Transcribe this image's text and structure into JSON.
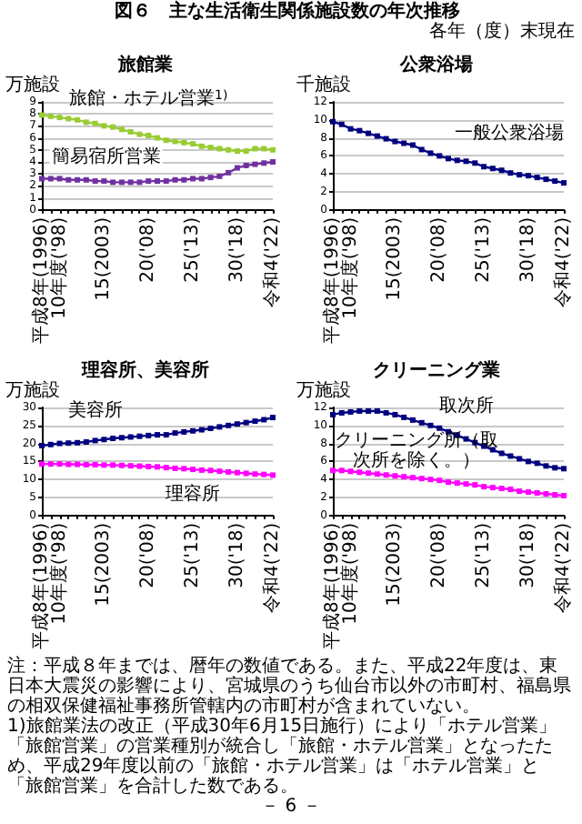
{
  "chart_data": [
    {
      "type": "line",
      "title": "旅館業",
      "ylabel": "万施設",
      "annotations": [
        "図６　主な生活衛生関係施設数の年次推移",
        "各年（度）末現在"
      ],
      "categories": [
        "平成8年(1996)",
        null,
        "10年度('98)",
        null,
        null,
        null,
        null,
        "15(2003)",
        null,
        null,
        null,
        null,
        "20('08)",
        null,
        null,
        null,
        null,
        "25('13)",
        null,
        null,
        null,
        null,
        "30('18)",
        null,
        null,
        null,
        "令和4('22)"
      ],
      "series": [
        {
          "name": "旅館・ホテル営業$^{1)}$",
          "color": "#99cc33",
          "values": [
            7.9,
            7.8,
            7.7,
            7.6,
            7.5,
            7.3,
            7.2,
            7.0,
            6.9,
            6.7,
            6.5,
            6.3,
            6.2,
            6.0,
            5.8,
            5.7,
            5.6,
            5.5,
            5.3,
            5.2,
            5.1,
            5.0,
            4.9,
            4.9,
            5.1,
            5.1,
            5.0
          ]
        },
        {
          "name": "簡易宿所営業",
          "color": "#7030a0",
          "values": [
            2.6,
            2.6,
            2.6,
            2.5,
            2.5,
            2.5,
            2.4,
            2.4,
            2.3,
            2.3,
            2.3,
            2.3,
            2.4,
            2.4,
            2.4,
            2.5,
            2.5,
            2.6,
            2.6,
            2.7,
            2.8,
            3.1,
            3.5,
            3.7,
            3.8,
            3.9,
            4.0
          ]
        }
      ],
      "ylim": [
        0,
        9
      ],
      "yticks": [
        0,
        1,
        2,
        3,
        4,
        5,
        6,
        7,
        8,
        9
      ],
      "grid": "y",
      "legend": false,
      "marker": "square"
    },
    {
      "type": "line",
      "title": "公衆浴場",
      "ylabel": "千施設",
      "categories": [
        "平成8年(1996)",
        null,
        "10年度('98)",
        null,
        null,
        null,
        null,
        "15(2003)",
        null,
        null,
        null,
        null,
        "20('08)",
        null,
        null,
        null,
        null,
        "25('13)",
        null,
        null,
        null,
        null,
        "30('18)",
        null,
        null,
        null,
        "令和4('22)"
      ],
      "series": [
        {
          "name": "一般公衆浴場",
          "color": "#000080",
          "values": [
            9.8,
            9.5,
            9.0,
            8.8,
            8.5,
            8.2,
            7.9,
            7.6,
            7.4,
            7.2,
            6.7,
            6.3,
            6.0,
            5.7,
            5.5,
            5.4,
            5.2,
            4.8,
            4.6,
            4.4,
            4.1,
            3.9,
            3.8,
            3.6,
            3.4,
            3.2,
            3.0
          ]
        }
      ],
      "ylim": [
        0,
        12
      ],
      "yticks": [
        0,
        2,
        4,
        6,
        8,
        10,
        12
      ],
      "grid": "y",
      "legend": false,
      "marker": "square"
    },
    {
      "type": "line",
      "title": "理容所、美容所",
      "ylabel": "万施設",
      "categories": [
        "平成8年(1996)",
        null,
        "10年度('98)",
        null,
        null,
        null,
        null,
        "15(2003)",
        null,
        null,
        null,
        null,
        "20('08)",
        null,
        null,
        null,
        null,
        "25('13)",
        null,
        null,
        null,
        null,
        "30('18)",
        null,
        null,
        null,
        "令和4('22)"
      ],
      "series": [
        {
          "name": "美容所",
          "color": "#000080",
          "values": [
            19.4,
            19.7,
            20.0,
            20.1,
            20.2,
            20.4,
            20.8,
            21.1,
            21.4,
            21.6,
            21.8,
            22.0,
            22.2,
            22.4,
            22.4,
            22.9,
            23.2,
            23.5,
            23.8,
            24.2,
            24.6,
            25.0,
            25.4,
            25.8,
            26.2,
            26.6,
            27.2
          ]
        },
        {
          "name": "理容所",
          "color": "#ff00ff",
          "values": [
            14.3,
            14.3,
            14.3,
            14.2,
            14.2,
            14.1,
            14.1,
            14.0,
            14.0,
            13.9,
            13.8,
            13.7,
            13.6,
            13.5,
            13.3,
            13.1,
            13.0,
            12.8,
            12.6,
            12.5,
            12.3,
            12.1,
            11.9,
            11.7,
            11.5,
            11.4,
            11.2
          ]
        }
      ],
      "ylim": [
        0,
        30
      ],
      "yticks": [
        0,
        5,
        10,
        15,
        20,
        25,
        30
      ],
      "grid": "y",
      "legend": false,
      "marker": "square"
    },
    {
      "type": "line",
      "title": "クリーニング業",
      "ylabel": "万施設",
      "annotations": [
        "注：平成８年までは、暦年の数値である。また、平成22年度は、東日本大震災の影響により、宮城県のうち仙台市以外の市町村、福島県の相双保健福祉事務所管轄内の市町村が含まれていない。",
        "1)旅館業法の改正（平成30年6月15日施行）により「ホテル営業」「旅館営業」の営業種別が統合し「旅館・ホテル営業」となったため、平成29年度以前の「旅館・ホテル営業」は「ホテル営業」と「旅館営業」を合計した数である。",
        "－ 6 －"
      ],
      "categories": [
        "平成8年(1996)",
        null,
        "10年度('98)",
        null,
        null,
        null,
        null,
        "15(2003)",
        null,
        null,
        null,
        null,
        "20('08)",
        null,
        null,
        null,
        null,
        "25('13)",
        null,
        null,
        null,
        null,
        "30('18)",
        null,
        null,
        null,
        "令和4('22)"
      ],
      "series": [
        {
          "name": "取次所",
          "color": "#000080",
          "values": [
            11.2,
            11.4,
            11.5,
            11.6,
            11.6,
            11.6,
            11.4,
            11.2,
            10.9,
            10.6,
            10.3,
            10.0,
            9.7,
            9.3,
            8.9,
            8.5,
            8.1,
            7.7,
            7.3,
            6.9,
            6.6,
            6.3,
            6.0,
            5.8,
            5.5,
            5.3,
            5.2
          ]
        },
        {
          "name": "クリーニング所（取次所を除く。）",
          "color": "#ff00ff",
          "values": [
            5.0,
            5.0,
            4.9,
            4.8,
            4.7,
            4.6,
            4.5,
            4.4,
            4.3,
            4.2,
            4.1,
            4.0,
            3.9,
            3.7,
            3.6,
            3.5,
            3.4,
            3.2,
            3.1,
            3.0,
            2.9,
            2.7,
            2.6,
            2.5,
            2.4,
            2.3,
            2.2
          ]
        }
      ],
      "ylim": [
        0,
        12
      ],
      "yticks": [
        0,
        2,
        4,
        6,
        8,
        10,
        12
      ],
      "grid": "y",
      "legend": false,
      "marker": "square"
    }
  ]
}
